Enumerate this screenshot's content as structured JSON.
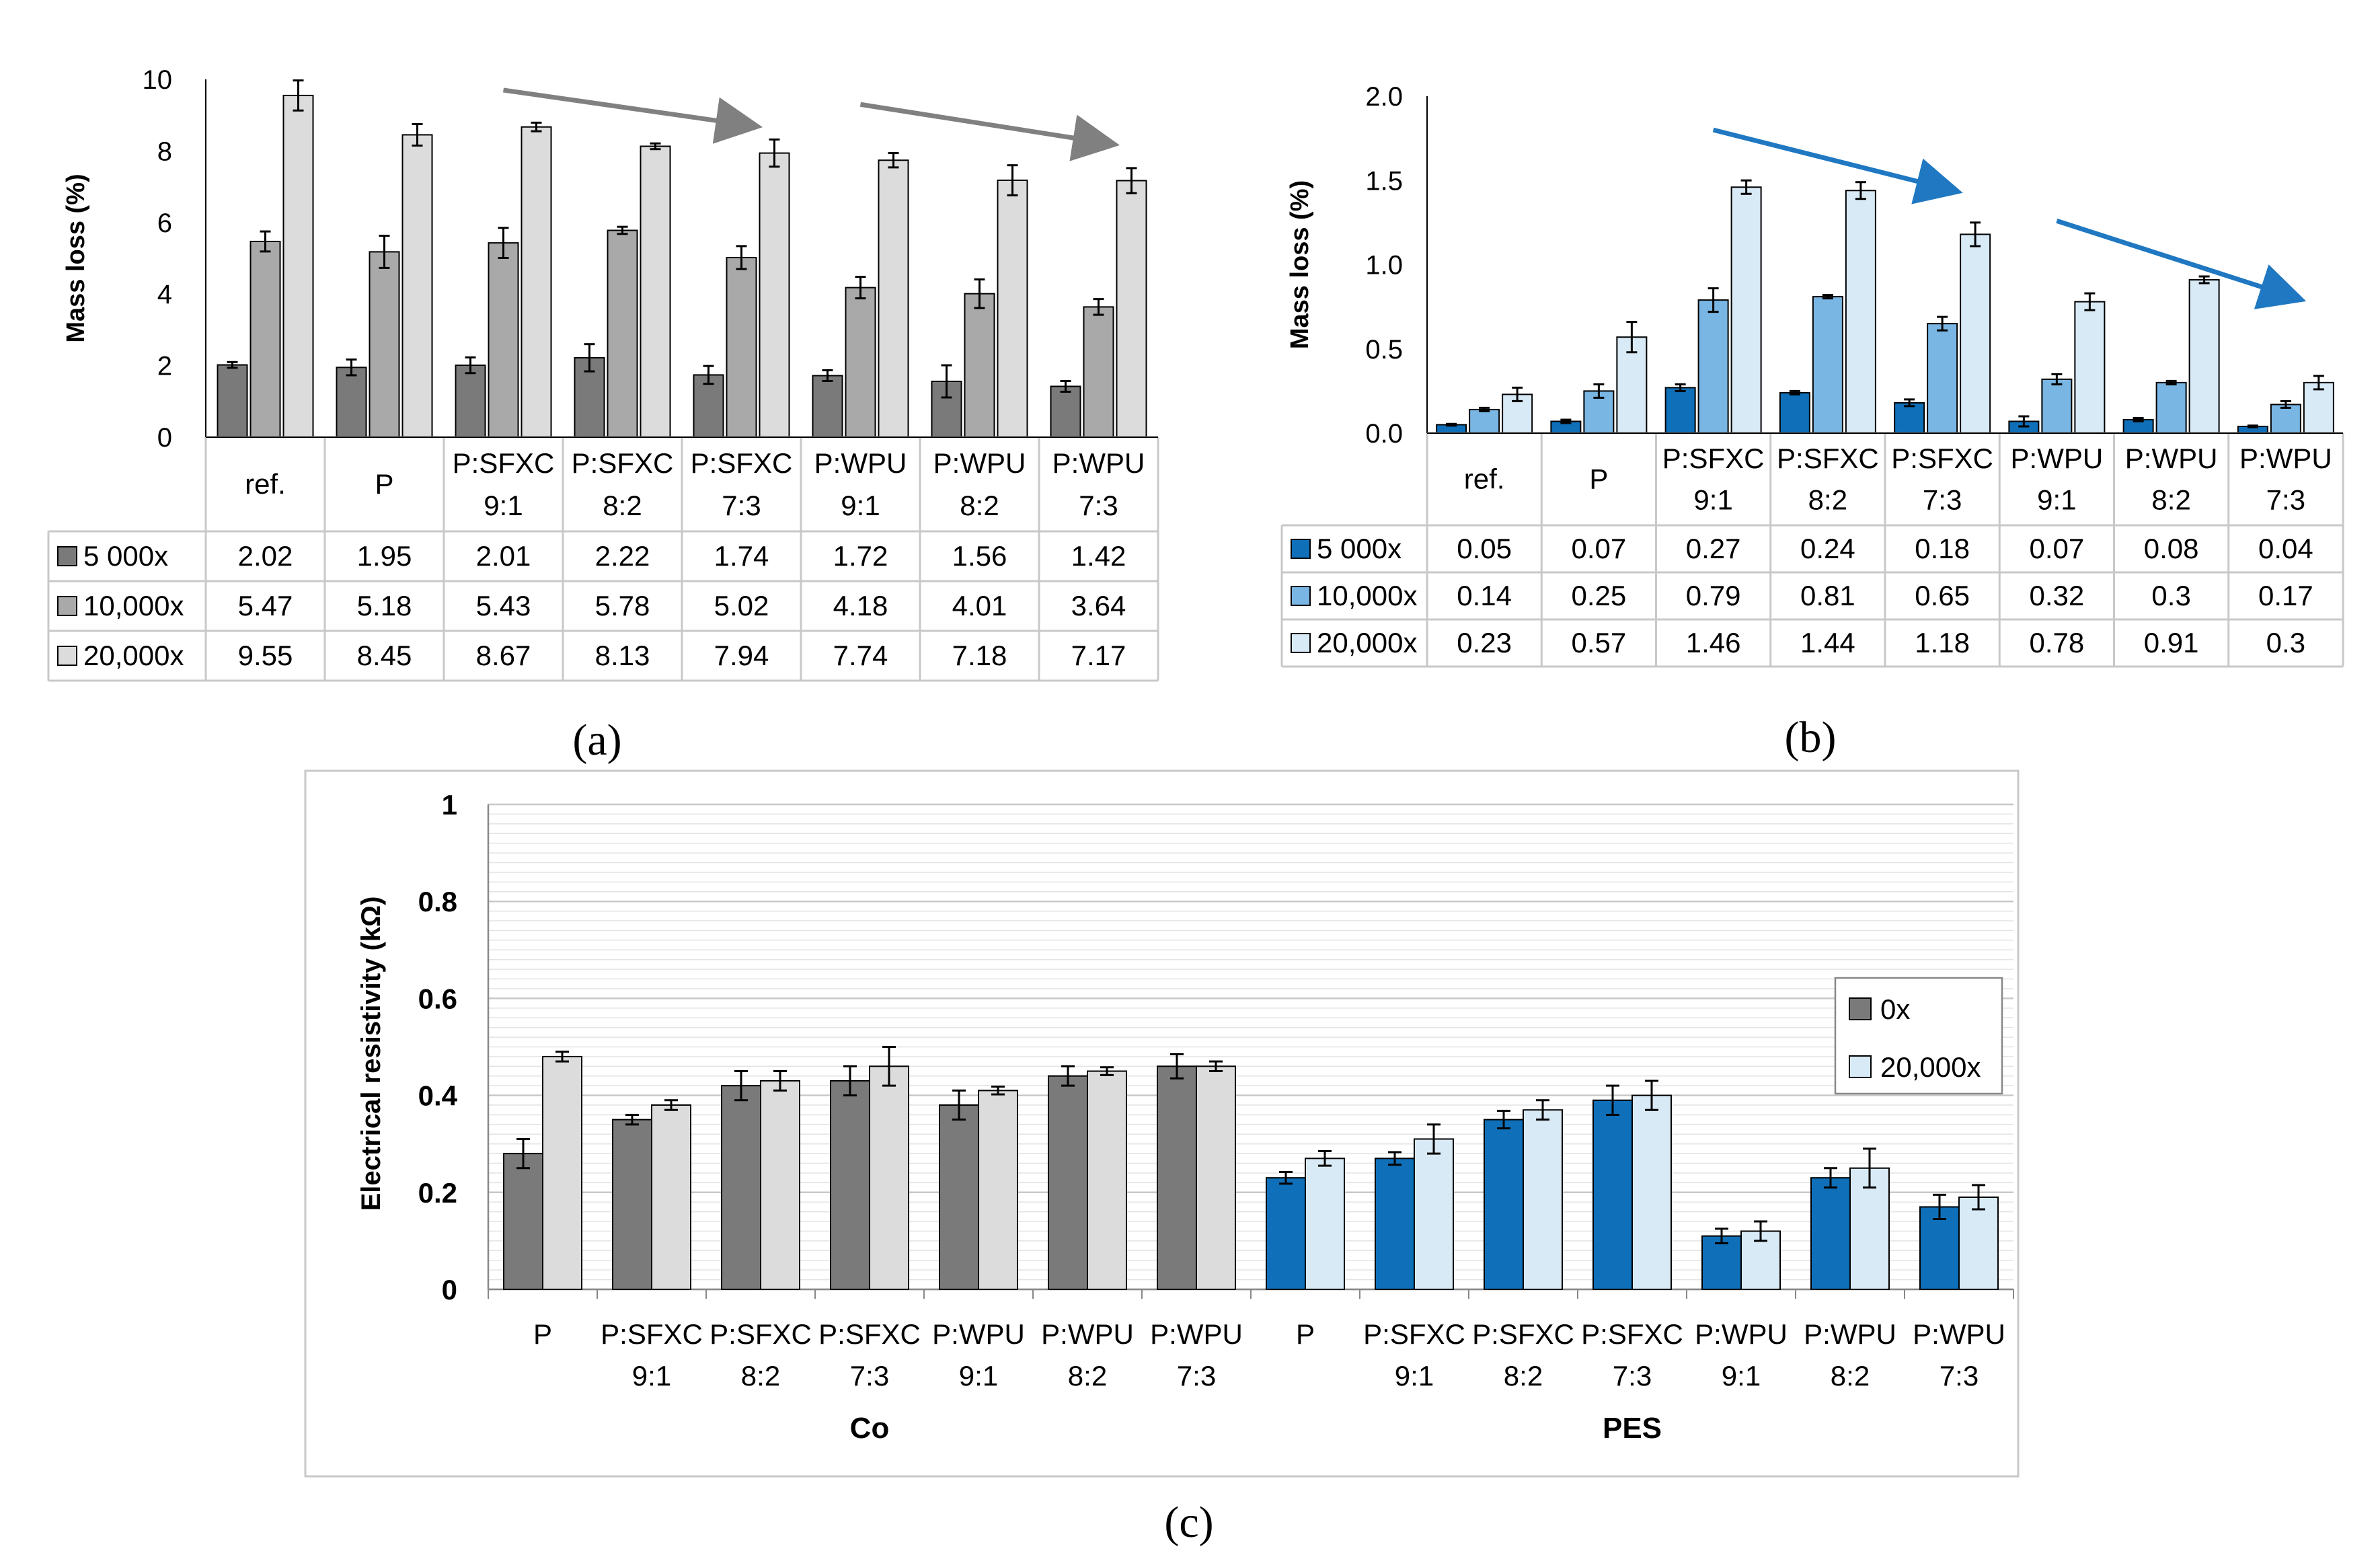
{
  "chart_data": [
    {
      "id": "a",
      "type": "bar",
      "caption": "(a)",
      "ylabel": "Mass loss (%)",
      "ylim": [
        0,
        10
      ],
      "yticks": [
        "0",
        "2",
        "4",
        "6",
        "8",
        "10"
      ],
      "categories": [
        [
          "ref."
        ],
        [
          "P"
        ],
        [
          "P:SFXC",
          "9:1"
        ],
        [
          "P:SFXC",
          "8:2"
        ],
        [
          "P:SFXC",
          "7:3"
        ],
        [
          "P:WPU",
          "9:1"
        ],
        [
          "P:WPU",
          "8:2"
        ],
        [
          "P:WPU",
          "7:3"
        ]
      ],
      "series": [
        {
          "name": "5 000x",
          "color": "#7a7a7a",
          "values": [
            2.02,
            1.95,
            2.01,
            2.22,
            1.74,
            1.72,
            1.56,
            1.42
          ],
          "errors": [
            0.08,
            0.22,
            0.22,
            0.38,
            0.25,
            0.15,
            0.45,
            0.15
          ]
        },
        {
          "name": "10,000x",
          "color": "#a9a9a9",
          "values": [
            5.47,
            5.18,
            5.43,
            5.78,
            5.02,
            4.18,
            4.01,
            3.64
          ],
          "errors": [
            0.28,
            0.45,
            0.42,
            0.1,
            0.32,
            0.3,
            0.4,
            0.22
          ]
        },
        {
          "name": "20,000x",
          "color": "#dcdcdc",
          "values": [
            9.55,
            8.45,
            8.67,
            8.13,
            7.94,
            7.74,
            7.18,
            7.17
          ],
          "errors": [
            0.42,
            0.3,
            0.12,
            0.08,
            0.38,
            0.2,
            0.42,
            0.35
          ]
        }
      ],
      "annotations": [
        {
          "type": "arrow",
          "color": "#808080",
          "from": {
            "x": 2.5,
            "y": 9.7
          },
          "to": {
            "x": 4.6,
            "y": 8.7
          }
        },
        {
          "type": "arrow",
          "color": "#808080",
          "from": {
            "x": 5.5,
            "y": 9.3
          },
          "to": {
            "x": 7.6,
            "y": 8.2
          }
        }
      ]
    },
    {
      "id": "b",
      "type": "bar",
      "caption": "(b)",
      "ylabel": "Mass loss (%)",
      "ylim": [
        0,
        2
      ],
      "yticks": [
        "0.0",
        "0.5",
        "1.0",
        "1.5",
        "2.0"
      ],
      "categories": [
        [
          "ref."
        ],
        [
          "P"
        ],
        [
          "P:SFXC",
          "9:1"
        ],
        [
          "P:SFXC",
          "8:2"
        ],
        [
          "P:SFXC",
          "7:3"
        ],
        [
          "P:WPU",
          "9:1"
        ],
        [
          "P:WPU",
          "8:2"
        ],
        [
          "P:WPU",
          "7:3"
        ]
      ],
      "series": [
        {
          "name": "5 000x",
          "color": "#0f6fb8",
          "values": [
            0.05,
            0.07,
            0.27,
            0.24,
            0.18,
            0.07,
            0.08,
            0.04
          ],
          "labels": [
            "0.05",
            "0.07",
            "0.27",
            "0.24",
            "0.18",
            "0.07",
            "0.08",
            "0.04"
          ],
          "errors": [
            0.005,
            0.01,
            0.02,
            0.01,
            0.02,
            0.03,
            0.01,
            0.005
          ]
        },
        {
          "name": "10,000x",
          "color": "#7ab6e3",
          "values": [
            0.14,
            0.25,
            0.79,
            0.81,
            0.65,
            0.32,
            0.3,
            0.17
          ],
          "labels": [
            "0.14",
            "0.25",
            "0.79",
            "0.81",
            "0.65",
            "0.32",
            "0.3",
            "0.17"
          ],
          "errors": [
            0.01,
            0.04,
            0.07,
            0.01,
            0.04,
            0.03,
            0.01,
            0.02
          ]
        },
        {
          "name": "20,000x",
          "color": "#d9eaf7",
          "values": [
            0.23,
            0.57,
            1.46,
            1.44,
            1.18,
            0.78,
            0.91,
            0.3
          ],
          "labels": [
            "0.23",
            "0.57",
            "1.46",
            "1.44",
            "1.18",
            "0.78",
            "0.91",
            "0.3"
          ],
          "errors": [
            0.04,
            0.09,
            0.04,
            0.05,
            0.07,
            0.05,
            0.02,
            0.04
          ]
        }
      ],
      "annotations": [
        {
          "type": "arrow",
          "color": "#1f78c1",
          "from": {
            "x": 2.5,
            "y": 1.8
          },
          "to": {
            "x": 4.6,
            "y": 1.44
          }
        },
        {
          "type": "arrow",
          "color": "#1f78c1",
          "from": {
            "x": 5.5,
            "y": 1.26
          },
          "to": {
            "x": 7.6,
            "y": 0.8
          }
        }
      ]
    },
    {
      "id": "c",
      "type": "bar",
      "caption": "(c)",
      "ylabel": "Electrical resistivity (kΩ)",
      "ylim": [
        0,
        1
      ],
      "yticks": [
        "0",
        "0.2",
        "0.4",
        "0.6",
        "0.8",
        "1"
      ],
      "grid": true,
      "legend_position": "right",
      "groups": [
        "Co",
        "PES"
      ],
      "categories": [
        [
          "P"
        ],
        [
          "P:SFXC",
          "9:1"
        ],
        [
          "P:SFXC",
          "8:2"
        ],
        [
          "P:SFXC",
          "7:3"
        ],
        [
          "P:WPU",
          "9:1"
        ],
        [
          "P:WPU",
          "8:2"
        ],
        [
          "P:WPU",
          "7:3"
        ],
        [
          "P"
        ],
        [
          "P:SFXC",
          "9:1"
        ],
        [
          "P:SFXC",
          "8:2"
        ],
        [
          "P:SFXC",
          "7:3"
        ],
        [
          "P:WPU",
          "9:1"
        ],
        [
          "P:WPU",
          "8:2"
        ],
        [
          "P:WPU",
          "7:3"
        ]
      ],
      "series": [
        {
          "name": "0x",
          "colors": [
            "#7a7a7a",
            "#0f6fb8"
          ],
          "values": [
            0.28,
            0.35,
            0.42,
            0.43,
            0.38,
            0.44,
            0.46,
            0.23,
            0.27,
            0.35,
            0.39,
            0.11,
            0.23,
            0.17
          ],
          "errors": [
            0.03,
            0.01,
            0.03,
            0.03,
            0.03,
            0.02,
            0.025,
            0.012,
            0.013,
            0.018,
            0.03,
            0.015,
            0.02,
            0.025
          ]
        },
        {
          "name": "20,000x",
          "colors": [
            "#dcdcdc",
            "#d9eaf7"
          ],
          "values": [
            0.48,
            0.38,
            0.43,
            0.46,
            0.41,
            0.45,
            0.46,
            0.27,
            0.31,
            0.37,
            0.4,
            0.12,
            0.25,
            0.19
          ],
          "errors": [
            0.01,
            0.01,
            0.02,
            0.04,
            0.008,
            0.008,
            0.01,
            0.015,
            0.03,
            0.02,
            0.03,
            0.02,
            0.04,
            0.025
          ]
        }
      ]
    }
  ]
}
